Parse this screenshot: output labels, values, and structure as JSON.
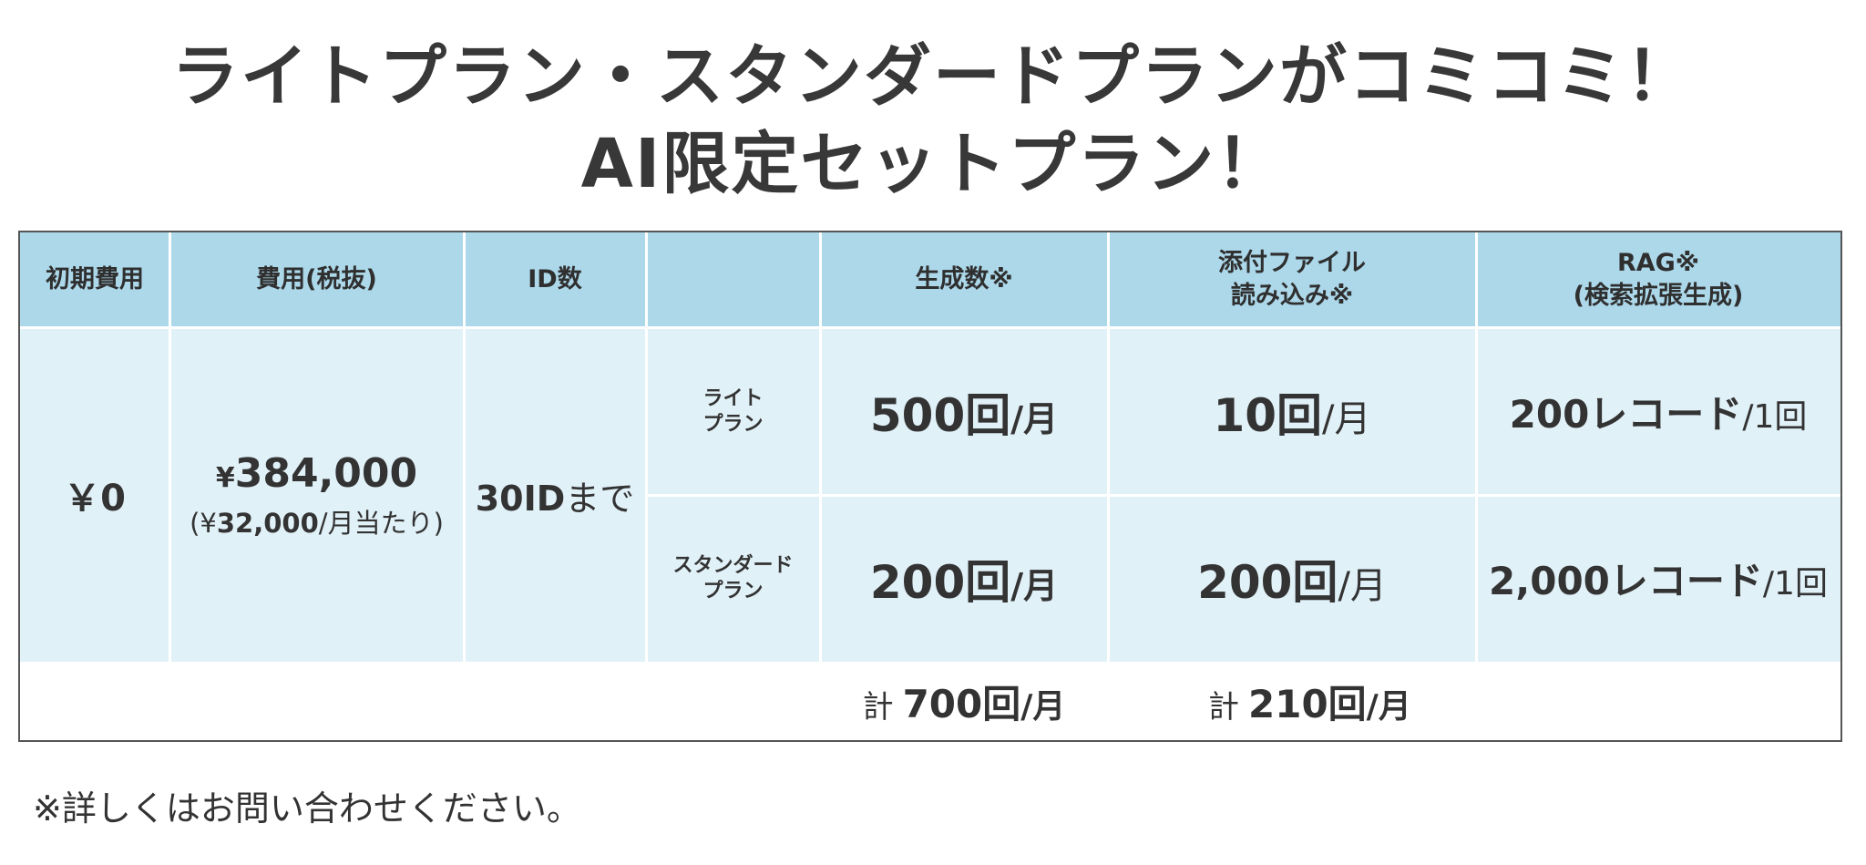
{
  "title": {
    "line1": "ライトプラン・スタンダードプランがコミコミ！",
    "line2": "AI限定セットプラン！"
  },
  "table": {
    "headers": {
      "initial_cost": "初期費用",
      "fee": "費用(税抜)",
      "id_count": "ID数",
      "plan": "",
      "generations": "生成数※",
      "file_read_line1": "添付ファイル",
      "file_read_line2": "読み込み※",
      "rag_line1": "RAG※",
      "rag_line2": "(検索拡張生成)"
    },
    "initial_cost": "￥0",
    "fee": {
      "yen": "¥",
      "amount": "384,000",
      "sub_open": "(¥",
      "sub_amount": "32,000",
      "sub_close": "/月当たり)"
    },
    "id_count": {
      "number": "30ID",
      "suffix": "まで"
    },
    "rows": [
      {
        "plan_line1": "ライト",
        "plan_line2": "プラン",
        "generations_num": "500回",
        "generations_unit": "/月",
        "file_num": "10回",
        "file_unit": "/月",
        "rag_num": "200レコード",
        "rag_unit": "/1回"
      },
      {
        "plan_line1": "スタンダード",
        "plan_line2": "プラン",
        "generations_num": "200回",
        "generations_unit": "/月",
        "file_num": "200回",
        "file_unit": "/月",
        "rag_num": "2,000レコード",
        "rag_unit": "/1回"
      }
    ],
    "totals": {
      "generations_prefix": "計",
      "generations_num": "700回",
      "generations_unit": "/月",
      "file_prefix": "計",
      "file_num": "210回",
      "file_unit": "/月"
    }
  },
  "note": "※詳しくはお問い合わせください。"
}
